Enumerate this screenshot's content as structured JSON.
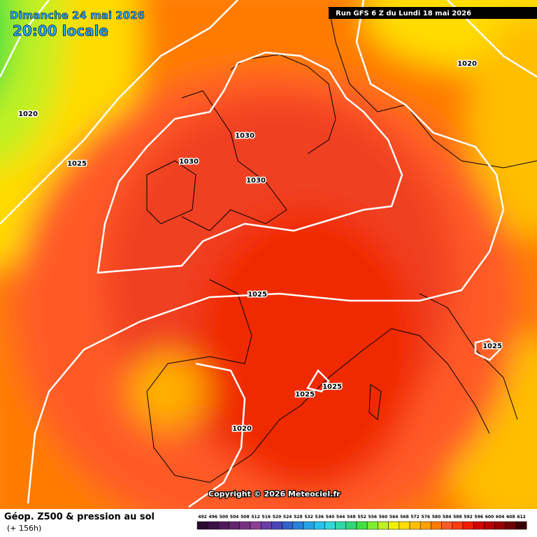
{
  "header": {
    "date": "Dimanche 24 mai 2026",
    "time": "20:00 locale",
    "run": "Run GFS 6 Z du Lundi 18 mai 2026"
  },
  "isobar_labels": [
    "1020",
    "1025",
    "1030",
    "1030",
    "1030",
    "1025",
    "1025",
    "1025",
    "1025",
    "1020",
    "1020"
  ],
  "copyright": "Copyright © 2026 Meteociel.fr",
  "footer": {
    "title": "Géop. Z500 & pression au sol",
    "lead": "(+ 156h)"
  },
  "scale": [
    {
      "value": 492,
      "color": "#2a0a30"
    },
    {
      "value": 496,
      "color": "#3c0f45"
    },
    {
      "value": 500,
      "color": "#501a5a"
    },
    {
      "value": 504,
      "color": "#64266e"
    },
    {
      "value": 508,
      "color": "#783282"
    },
    {
      "value": 512,
      "color": "#8c3e96"
    },
    {
      "value": 516,
      "color": "#6a3ca8"
    },
    {
      "value": 520,
      "color": "#4a46b8"
    },
    {
      "value": 524,
      "color": "#3262c8"
    },
    {
      "value": 528,
      "color": "#2a82d8"
    },
    {
      "value": 532,
      "color": "#28a2e6"
    },
    {
      "value": 536,
      "color": "#28c2ee"
    },
    {
      "value": 540,
      "color": "#30d8d8"
    },
    {
      "value": 544,
      "color": "#30d8a8"
    },
    {
      "value": 548,
      "color": "#30d878"
    },
    {
      "value": 552,
      "color": "#40e040"
    },
    {
      "value": 556,
      "color": "#80ee30"
    },
    {
      "value": 560,
      "color": "#c0f020"
    },
    {
      "value": 564,
      "color": "#f0f000"
    },
    {
      "value": 568,
      "color": "#ffdc00"
    },
    {
      "value": 572,
      "color": "#ffbe00"
    },
    {
      "value": 576,
      "color": "#ffa000"
    },
    {
      "value": 580,
      "color": "#ff7c00"
    },
    {
      "value": 584,
      "color": "#ff5a28"
    },
    {
      "value": 588,
      "color": "#ff3c14"
    },
    {
      "value": 592,
      "color": "#f01e00"
    },
    {
      "value": 596,
      "color": "#d20000"
    },
    {
      "value": 600,
      "color": "#b40000"
    },
    {
      "value": 604,
      "color": "#960000"
    },
    {
      "value": 608,
      "color": "#6e0000"
    },
    {
      "value": 612,
      "color": "#3c0000"
    }
  ]
}
